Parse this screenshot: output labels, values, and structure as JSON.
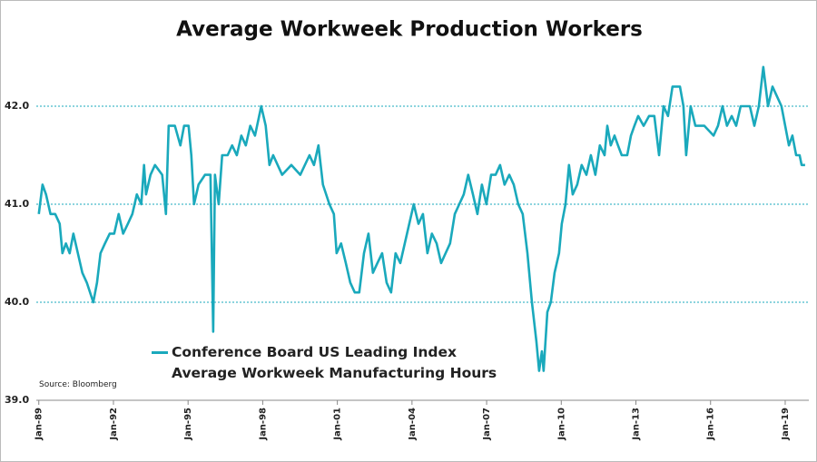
{
  "chart_data": {
    "type": "line",
    "title": "Average Workweek Production Workers",
    "source": "Source: Bloomberg",
    "series": [
      {
        "name": "Conference Board US Leading Index Average Workweek Manufacturing Hours",
        "color": "#1aa9bc",
        "x": [
          1989.0,
          1989.15,
          1989.29,
          1989.47,
          1989.66,
          1989.84,
          1989.95,
          1990.09,
          1990.24,
          1990.39,
          1990.57,
          1990.75,
          1990.93,
          1991.19,
          1991.34,
          1991.48,
          1991.66,
          1991.85,
          1992.03,
          1992.21,
          1992.39,
          1992.58,
          1992.76,
          1992.94,
          1993.12,
          1993.23,
          1993.31,
          1993.49,
          1993.67,
          1993.96,
          1994.11,
          1994.22,
          1994.47,
          1994.69,
          1994.84,
          1995.02,
          1995.13,
          1995.24,
          1995.42,
          1995.68,
          1995.9,
          1996.01,
          1996.08,
          1996.23,
          1996.37,
          1996.59,
          1996.77,
          1996.96,
          1997.14,
          1997.32,
          1997.5,
          1997.69,
          1997.94,
          1998.12,
          1998.27,
          1998.42,
          1998.78,
          1999.15,
          1999.51,
          1999.88,
          2000.06,
          2000.24,
          2000.42,
          2000.68,
          2000.86,
          2000.97,
          2001.15,
          2001.34,
          2001.52,
          2001.7,
          2001.88,
          2002.07,
          2002.25,
          2002.43,
          2002.61,
          2002.8,
          2002.98,
          2003.16,
          2003.34,
          2003.53,
          2003.71,
          2003.89,
          2004.07,
          2004.26,
          2004.44,
          2004.62,
          2004.8,
          2004.99,
          2005.17,
          2005.35,
          2005.53,
          2005.72,
          2005.9,
          2006.08,
          2006.26,
          2006.45,
          2006.63,
          2006.81,
          2006.99,
          2007.18,
          2007.36,
          2007.54,
          2007.72,
          2007.91,
          2008.09,
          2008.27,
          2008.45,
          2008.64,
          2008.82,
          2009.0,
          2009.11,
          2009.22,
          2009.29,
          2009.44,
          2009.58,
          2009.73,
          2009.91,
          2010.02,
          2010.17,
          2010.31,
          2010.46,
          2010.64,
          2010.82,
          2011.01,
          2011.19,
          2011.37,
          2011.55,
          2011.74,
          2011.85,
          2011.99,
          2012.14,
          2012.28,
          2012.43,
          2012.65,
          2012.8,
          2012.94,
          2013.09,
          2013.31,
          2013.53,
          2013.74,
          2013.93,
          2014.11,
          2014.29,
          2014.47,
          2014.77,
          2014.91,
          2015.02,
          2015.2,
          2015.39,
          2015.75,
          2016.12,
          2016.3,
          2016.48,
          2016.66,
          2016.85,
          2017.03,
          2017.21,
          2017.58,
          2017.76,
          2017.94,
          2018.12,
          2018.31,
          2018.49,
          2018.67,
          2018.85,
          2019.0,
          2019.15,
          2019.29,
          2019.44,
          2019.58,
          2019.66,
          2019.8
        ],
        "values": [
          40.9,
          41.2,
          41.1,
          40.9,
          40.9,
          40.8,
          40.5,
          40.6,
          40.5,
          40.7,
          40.5,
          40.3,
          40.2,
          40.0,
          40.2,
          40.5,
          40.6,
          40.7,
          40.7,
          40.9,
          40.7,
          40.8,
          40.9,
          41.1,
          41.0,
          41.4,
          41.1,
          41.3,
          41.4,
          41.3,
          40.9,
          41.8,
          41.8,
          41.6,
          41.8,
          41.8,
          41.5,
          41.0,
          41.2,
          41.3,
          41.3,
          39.7,
          41.3,
          41.0,
          41.5,
          41.5,
          41.6,
          41.5,
          41.7,
          41.6,
          41.8,
          41.7,
          42.0,
          41.8,
          41.4,
          41.5,
          41.3,
          41.4,
          41.3,
          41.5,
          41.4,
          41.6,
          41.2,
          41.0,
          40.9,
          40.5,
          40.6,
          40.4,
          40.2,
          40.1,
          40.1,
          40.5,
          40.7,
          40.3,
          40.4,
          40.5,
          40.2,
          40.1,
          40.5,
          40.4,
          40.6,
          40.8,
          41.0,
          40.8,
          40.9,
          40.5,
          40.7,
          40.6,
          40.4,
          40.5,
          40.6,
          40.9,
          41.0,
          41.1,
          41.3,
          41.1,
          40.9,
          41.2,
          41.0,
          41.3,
          41.3,
          41.4,
          41.2,
          41.3,
          41.2,
          41.0,
          40.9,
          40.5,
          40.0,
          39.6,
          39.3,
          39.5,
          39.3,
          39.9,
          40.0,
          40.3,
          40.5,
          40.8,
          41.0,
          41.4,
          41.1,
          41.2,
          41.4,
          41.3,
          41.5,
          41.3,
          41.6,
          41.5,
          41.8,
          41.6,
          41.7,
          41.6,
          41.5,
          41.5,
          41.7,
          41.8,
          41.9,
          41.8,
          41.9,
          41.9,
          41.5,
          42.0,
          41.9,
          42.2,
          42.2,
          42.0,
          41.5,
          42.0,
          41.8,
          41.8,
          41.7,
          41.8,
          42.0,
          41.8,
          41.9,
          41.8,
          42.0,
          42.0,
          41.8,
          42.0,
          42.4,
          42.0,
          42.2,
          42.1,
          42.0,
          41.8,
          41.6,
          41.7,
          41.5,
          41.5,
          41.4,
          41.4
        ]
      }
    ],
    "xlim": [
      1988.9,
      2019.95
    ],
    "xticks": [
      {
        "value": 1989,
        "label": "Jan-89"
      },
      {
        "value": 1992,
        "label": "Jan-92"
      },
      {
        "value": 1995,
        "label": "Jan-95"
      },
      {
        "value": 1998,
        "label": "Jan-98"
      },
      {
        "value": 2001,
        "label": "Jan-01"
      },
      {
        "value": 2004,
        "label": "Jan-04"
      },
      {
        "value": 2007,
        "label": "Jan-07"
      },
      {
        "value": 2010,
        "label": "Jan-10"
      },
      {
        "value": 2013,
        "label": "Jan-13"
      },
      {
        "value": 2016,
        "label": "Jan-16"
      },
      {
        "value": 2019,
        "label": "Jan-19"
      }
    ],
    "ylim": [
      39,
      42.5
    ],
    "yticks": [
      {
        "value": 39,
        "label": "39.0"
      },
      {
        "value": 40,
        "label": "40.0"
      },
      {
        "value": 41,
        "label": "41.0"
      },
      {
        "value": 42,
        "label": "42.0"
      }
    ],
    "grid": true
  }
}
